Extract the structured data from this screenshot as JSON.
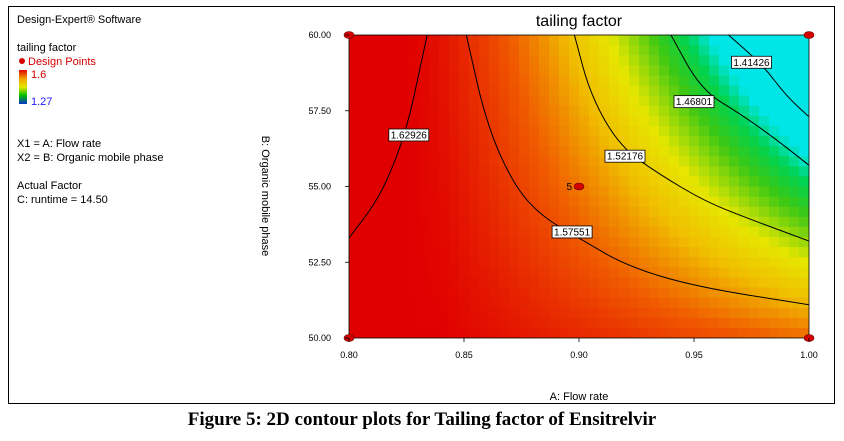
{
  "app": {
    "software": "Design-Expert® Software"
  },
  "legend": {
    "response": "tailing factor",
    "design_points_label": "Design Points",
    "high": "1.6",
    "low": "1.27",
    "colors": {
      "high": "#e00000",
      "mid": "#e6e600",
      "low": "#0033cc",
      "design_point": "#d40000"
    }
  },
  "factors": {
    "x1": "X1 = A: Flow rate",
    "x2": "X2 = B: Organic mobile phase",
    "actual_title": "Actual Factor",
    "actual_value": "C: runtime = 14.50"
  },
  "caption": "Figure 5: 2D contour plots for Tailing factor of Ensitrelvir",
  "chart_data": {
    "type": "contour",
    "title": "tailing factor",
    "xlabel": "A: Flow rate",
    "ylabel": "B: Organic mobile phase",
    "xlim": [
      0.8,
      1.0
    ],
    "ylim": [
      50.0,
      60.0
    ],
    "xticks": [
      "0.80",
      "0.85",
      "0.90",
      "0.95",
      "1.00"
    ],
    "yticks": [
      "50.00",
      "52.50",
      "55.00",
      "57.50",
      "60.00"
    ],
    "contours": [
      {
        "level": "1.62926",
        "label_at": [
          0.826,
          56.7
        ],
        "points": [
          [
            0.8,
            53.3
          ],
          [
            0.812,
            54.5
          ],
          [
            0.82,
            55.8
          ],
          [
            0.826,
            57.2
          ],
          [
            0.83,
            58.6
          ],
          [
            0.834,
            60.0
          ]
        ]
      },
      {
        "level": "1.57551",
        "label_at": [
          0.897,
          53.5
        ],
        "points": [
          [
            0.851,
            60.0
          ],
          [
            0.86,
            57.0
          ],
          [
            0.872,
            55.0
          ],
          [
            0.884,
            54.0
          ],
          [
            0.9,
            53.3
          ],
          [
            0.92,
            52.4
          ],
          [
            0.95,
            51.7
          ],
          [
            1.0,
            51.1
          ]
        ]
      },
      {
        "level": "1.52176",
        "label_at": [
          0.92,
          56.0
        ],
        "points": [
          [
            0.898,
            60.0
          ],
          [
            0.905,
            58.0
          ],
          [
            0.918,
            56.3
          ],
          [
            0.935,
            55.4
          ],
          [
            0.955,
            54.5
          ],
          [
            0.975,
            53.9
          ],
          [
            1.0,
            53.2
          ]
        ]
      },
      {
        "level": "1.46801",
        "label_at": [
          0.95,
          57.8
        ],
        "points": [
          [
            0.94,
            60.0
          ],
          [
            0.953,
            58.2
          ],
          [
            0.97,
            57.4
          ],
          [
            0.985,
            56.6
          ],
          [
            1.0,
            55.7
          ]
        ]
      },
      {
        "level": "1.41426",
        "label_at": [
          0.975,
          59.1
        ],
        "points": [
          [
            0.965,
            60.0
          ],
          [
            0.98,
            59.0
          ],
          [
            0.99,
            58.0
          ],
          [
            1.0,
            57.3
          ]
        ]
      }
    ],
    "design_points": [
      {
        "x": 0.8,
        "y": 60.0
      },
      {
        "x": 1.0,
        "y": 60.0
      },
      {
        "x": 0.8,
        "y": 50.0
      },
      {
        "x": 1.0,
        "y": 50.0
      },
      {
        "x": 0.9,
        "y": 55.0,
        "label": "5"
      }
    ],
    "colorscale": {
      "min": 1.27,
      "max": 1.6
    }
  }
}
